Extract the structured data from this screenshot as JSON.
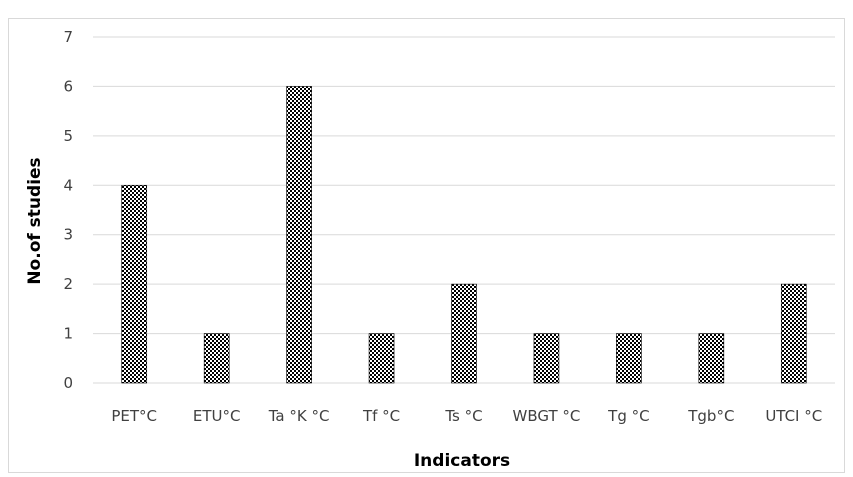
{
  "chart_data": {
    "type": "bar",
    "title": "",
    "xlabel": "Indicators",
    "ylabel": "No.of studies",
    "categories": [
      "PET°C",
      "ETU°C",
      "Ta °K °C",
      "Tf °C",
      "Ts °C",
      "WBGT °C",
      "Tg °C",
      "Tgb°C",
      "UTCI °C"
    ],
    "values": [
      4,
      1,
      6,
      1,
      2,
      1,
      1,
      1,
      2
    ],
    "ylim": [
      0,
      7
    ],
    "yticks": [
      "0",
      "1",
      "2",
      "3",
      "4",
      "5",
      "6",
      "7"
    ],
    "grid": true,
    "legend": "none",
    "bar_color": "#000000",
    "bar_pattern": "checkered",
    "grid_color": "#d9d9d9"
  }
}
